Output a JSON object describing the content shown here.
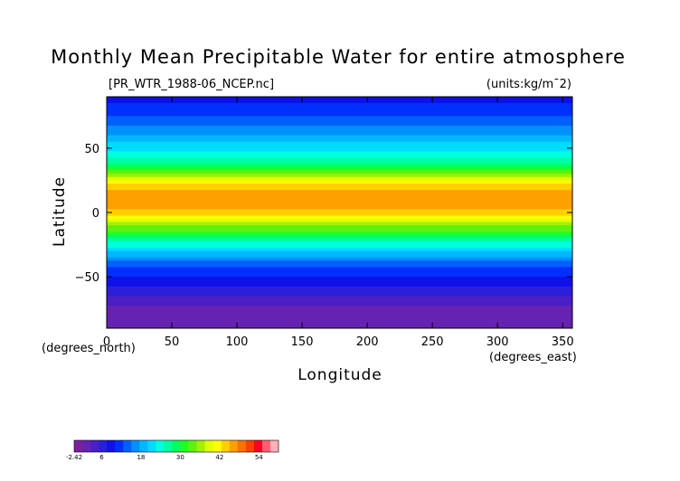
{
  "chart_data": {
    "type": "heatmap",
    "title": "Monthly Mean Precipitable Water for entire atmosphere",
    "subtitle_left": "[PR_WTR_1988-06_NCEP.nc]",
    "units_label": "(units:kg/m¯2)",
    "xlabel": "Longitude",
    "ylabel": "Latitude",
    "x_unit_label": "(degrees_east)",
    "y_unit_label": "(degrees_north)",
    "xlim": [
      0,
      357.5
    ],
    "ylim": [
      -90,
      90
    ],
    "x_ticks": [
      0,
      50,
      100,
      150,
      200,
      250,
      300,
      350
    ],
    "y_ticks": [
      -50,
      0,
      50
    ],
    "y_tick_labels": [
      "−50",
      "0",
      "50"
    ],
    "colorbar": {
      "tick_labels": [
        "-2.42",
        "6",
        "18",
        "30",
        "42",
        "54"
      ],
      "tick_values": [
        -2.42,
        6,
        18,
        30,
        42,
        54
      ],
      "min": -2.42,
      "max": 60,
      "colors": [
        "#7a1fa0",
        "#6622b0",
        "#4a1fc4",
        "#2a1fd8",
        "#1010e8",
        "#0030ff",
        "#0060ff",
        "#0090ff",
        "#00b8ff",
        "#00dcff",
        "#00ffdc",
        "#00ffa0",
        "#00ff60",
        "#20ff20",
        "#60f010",
        "#a0f000",
        "#e0ff00",
        "#ffff00",
        "#ffd000",
        "#ffa000",
        "#ff7000",
        "#ff4000",
        "#ff0020",
        "#ff6070",
        "#ffb0b8"
      ]
    },
    "zonal_profile": {
      "lat": [
        90,
        80,
        70,
        60,
        50,
        40,
        30,
        20,
        10,
        0,
        -10,
        -20,
        -30,
        -40,
        -50,
        -60,
        -70,
        -80,
        -90
      ],
      "value": [
        9,
        11,
        14,
        18,
        22,
        26,
        34,
        44,
        48,
        44,
        36,
        28,
        20,
        14,
        10,
        7,
        3,
        1,
        0
      ]
    }
  }
}
